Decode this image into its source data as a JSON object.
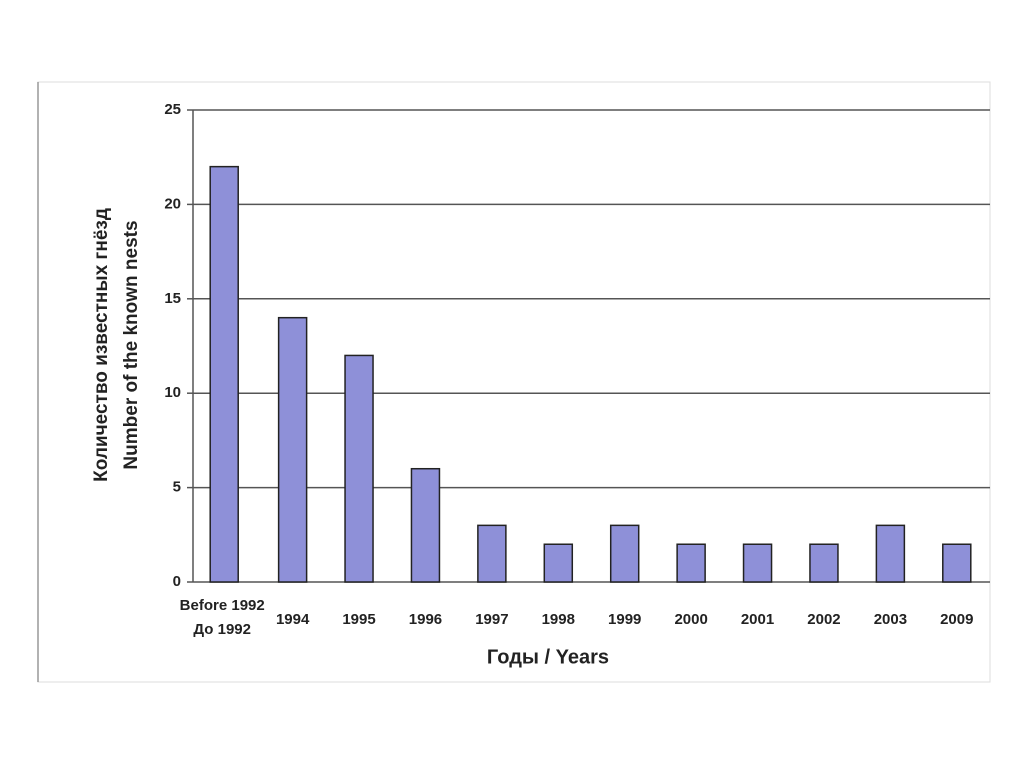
{
  "chart_data": {
    "type": "bar",
    "xlabel": "Годы / Years",
    "ylabel": [
      "Количество известных гнёзд",
      "Number of the known nests"
    ],
    "categories": [
      "Before 1992\nДо 1992",
      "1994",
      "1995",
      "1996",
      "1997",
      "1998",
      "1999",
      "2000",
      "2001",
      "2002",
      "2003",
      "2009"
    ],
    "values": [
      22,
      14,
      12,
      6,
      3,
      2,
      3,
      2,
      2,
      2,
      3,
      2
    ],
    "color": "#8e90d8",
    "ylim": [
      0,
      25
    ],
    "yticks": [
      0,
      5,
      10,
      15,
      20,
      25
    ],
    "grid": true
  }
}
